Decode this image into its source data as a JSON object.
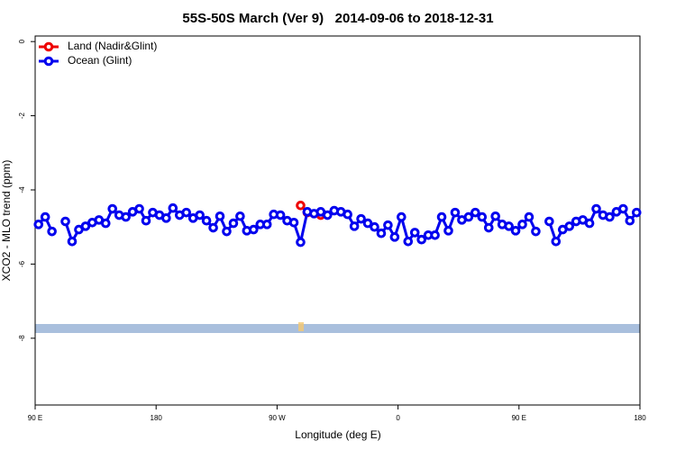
{
  "chart_data": {
    "type": "line",
    "title": "55S-50S March (Ver 9)   2014-09-06 to 2018-12-31",
    "x_label": "Longitude (deg E)",
    "y_label": "XCO2 - MLO trend (ppm)",
    "xlim": [
      90,
      540
    ],
    "ylim": [
      -9.8,
      0.15
    ],
    "xticks": [
      {
        "value": 90,
        "label": "90 E"
      },
      180,
      {
        "value": 270,
        "label": "90 W"
      },
      {
        "value": 360,
        "label": "0"
      },
      {
        "value": 450,
        "label": "90 E"
      },
      {
        "value": 540,
        "label": "180"
      }
    ],
    "yticks": [
      0,
      -2,
      -4,
      -6,
      -8
    ],
    "legend": "topleft",
    "series": [
      {
        "name": "Land (Nadir&Glint)",
        "color": "#ee0000",
        "x": [
          287.5,
          292.5,
          297.5,
          302.5
        ],
        "values": [
          -4.42,
          -4.61,
          null,
          -4.68
        ]
      },
      {
        "name": "Ocean (Glint)",
        "color": "#0000ee",
        "x": [
          92.5,
          97.5,
          102.5,
          107.5,
          112.5,
          117.5,
          122.5,
          127.5,
          132.5,
          137.5,
          142.5,
          147.5,
          152.5,
          157.5,
          162.5,
          167.5,
          172.5,
          177.5,
          182.5,
          187.5,
          192.5,
          197.5,
          202.5,
          207.5,
          212.5,
          217.5,
          222.5,
          227.5,
          232.5,
          237.5,
          242.5,
          247.5,
          252.5,
          257.5,
          262.5,
          267.5,
          272.5,
          277.5,
          282.5,
          287.5,
          292.5,
          297.5,
          302.5,
          307.5,
          312.5,
          317.5,
          322.5,
          327.5,
          332.5,
          337.5,
          342.5,
          347.5,
          352.5,
          357.5,
          362.5,
          367.5,
          372.5,
          377.5,
          382.5,
          387.5,
          392.5,
          397.5,
          402.5,
          407.5,
          412.5,
          417.5,
          422.5,
          427.5,
          432.5,
          437.5,
          442.5,
          447.5,
          452.5,
          457.5,
          462.5,
          467.5,
          472.5,
          477.5,
          482.5,
          487.5,
          492.5,
          497.5,
          502.5,
          507.5,
          512.5,
          517.5,
          522.5,
          527.5,
          532.5,
          537.5
        ],
        "values": [
          -4.93,
          -4.73,
          -5.12,
          null,
          -4.85,
          -5.39,
          -5.07,
          -4.98,
          -4.88,
          -4.81,
          -4.9,
          -4.51,
          -4.68,
          -4.73,
          -4.59,
          -4.51,
          -4.83,
          -4.61,
          -4.68,
          -4.76,
          -4.49,
          -4.68,
          -4.61,
          -4.76,
          -4.68,
          -4.83,
          -5.02,
          -4.71,
          -5.12,
          -4.9,
          -4.71,
          -5.1,
          -5.07,
          -4.93,
          -4.93,
          -4.66,
          -4.68,
          -4.83,
          -4.88,
          -5.41,
          -4.59,
          -4.64,
          -4.59,
          -4.68,
          -4.56,
          -4.59,
          -4.66,
          -4.98,
          -4.78,
          -4.9,
          -5.0,
          -5.17,
          -4.95,
          -5.27,
          -4.73,
          -5.39,
          -5.15,
          -5.34,
          -5.22,
          -5.22,
          -4.73,
          -5.1,
          -4.61,
          -4.81,
          -4.73,
          -4.61,
          -4.73,
          -5.02,
          -4.71,
          -4.93,
          -4.98,
          -5.1,
          -4.93,
          -4.73,
          -5.12,
          null,
          -4.85,
          -5.39,
          -5.07,
          -4.98,
          -4.85,
          -4.81,
          -4.9,
          -4.51,
          -4.68,
          -4.73,
          -4.59,
          -4.51,
          -4.83,
          -4.61
        ]
      }
    ]
  }
}
